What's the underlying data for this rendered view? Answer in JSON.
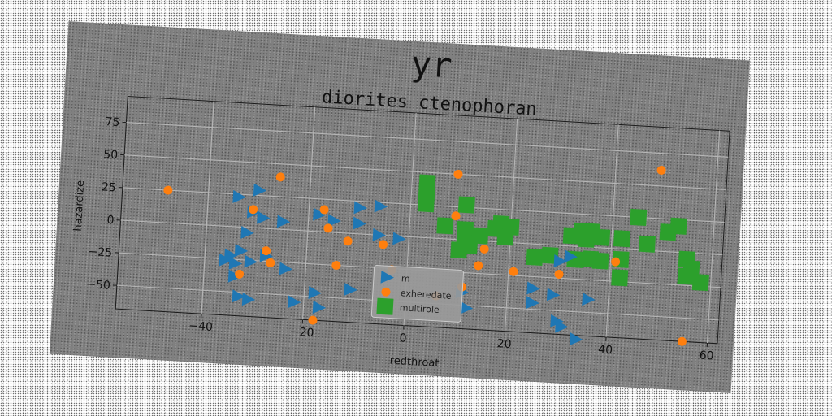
{
  "chart_data": {
    "type": "scatter",
    "suptitle": "yr",
    "title": "diorites ctenophoran",
    "xlabel": "redthroat",
    "ylabel": "hazardize",
    "xlim": [
      -57,
      62
    ],
    "ylim": [
      -68,
      95
    ],
    "xticks": [
      -40,
      -20,
      0,
      20,
      40,
      60
    ],
    "yticks": [
      -50,
      -25,
      0,
      25,
      50,
      75
    ],
    "grid": true,
    "legend_position": "lower center",
    "series": [
      {
        "name": "m",
        "marker": "triangle-right",
        "color": "#1f77b4",
        "points": [
          [
            -34,
            23
          ],
          [
            -30,
            29
          ],
          [
            -31,
            12
          ],
          [
            -29,
            8
          ],
          [
            -25,
            6
          ],
          [
            -32,
            -4
          ],
          [
            -33,
            -18
          ],
          [
            -35,
            -22
          ],
          [
            -36,
            -26
          ],
          [
            -34,
            -28
          ],
          [
            -31,
            -26
          ],
          [
            -28,
            -21
          ],
          [
            -24,
            -30
          ],
          [
            -34,
            -38
          ],
          [
            -33,
            -53
          ],
          [
            -31,
            -55
          ],
          [
            -22,
            -55
          ],
          [
            -18,
            -47
          ],
          [
            -17,
            -58
          ],
          [
            -18,
            13
          ],
          [
            -15,
            9
          ],
          [
            -10,
            20
          ],
          [
            -10,
            8
          ],
          [
            -6,
            22
          ],
          [
            -6,
            0
          ],
          [
            -2,
            -2
          ],
          [
            -11,
            -43
          ],
          [
            12,
            -52
          ],
          [
            11,
            -40
          ],
          [
            25,
            -34
          ],
          [
            25,
            -45
          ],
          [
            29,
            -38
          ],
          [
            30,
            -58
          ],
          [
            31,
            -62
          ],
          [
            34,
            -71
          ],
          [
            30,
            -12
          ],
          [
            32,
            -8
          ],
          [
            36,
            -40
          ]
        ]
      },
      {
        "name": "exheredate",
        "marker": "circle",
        "color": "#ff7f0e",
        "points": [
          [
            -48,
            25
          ],
          [
            -26,
            40
          ],
          [
            -31,
            14
          ],
          [
            -28,
            -17
          ],
          [
            -27,
            -26
          ],
          [
            -33,
            -36
          ],
          [
            -18,
            -68
          ],
          [
            -17,
            17
          ],
          [
            -16,
            3
          ],
          [
            -14,
            -25
          ],
          [
            -12,
            -6
          ],
          [
            -5,
            -7
          ],
          [
            -3,
            -26
          ],
          [
            6,
            -44
          ],
          [
            9,
            50
          ],
          [
            9,
            18
          ],
          [
            11,
            -36
          ],
          [
            14,
            -19
          ],
          [
            15,
            -6
          ],
          [
            21,
            -22
          ],
          [
            30,
            -22
          ],
          [
            41,
            -10
          ],
          [
            49,
            62
          ],
          [
            55,
            -68
          ]
        ]
      },
      {
        "name": "multirole",
        "marker": "square",
        "color": "#2ca02c",
        "points": [
          [
            3,
            42
          ],
          [
            3,
            35
          ],
          [
            3,
            26
          ],
          [
            7,
            10
          ],
          [
            11,
            27
          ],
          [
            11,
            8
          ],
          [
            11,
            -2
          ],
          [
            10,
            -8
          ],
          [
            12,
            -4
          ],
          [
            14,
            4
          ],
          [
            17,
            10
          ],
          [
            18,
            14
          ],
          [
            19,
            4
          ],
          [
            20,
            12
          ],
          [
            25,
            -10
          ],
          [
            28,
            -8
          ],
          [
            32,
            8
          ],
          [
            34,
            12
          ],
          [
            35,
            6
          ],
          [
            36,
            12
          ],
          [
            33,
            -10
          ],
          [
            36,
            -9
          ],
          [
            38,
            -10
          ],
          [
            38,
            8
          ],
          [
            42,
            8
          ],
          [
            42,
            -8
          ],
          [
            42,
            -22
          ],
          [
            45,
            25
          ],
          [
            47,
            5
          ],
          [
            51,
            15
          ],
          [
            53,
            20
          ],
          [
            55,
            -5
          ],
          [
            55,
            -18
          ],
          [
            58,
            -22
          ],
          [
            56,
            -12
          ]
        ]
      }
    ]
  }
}
